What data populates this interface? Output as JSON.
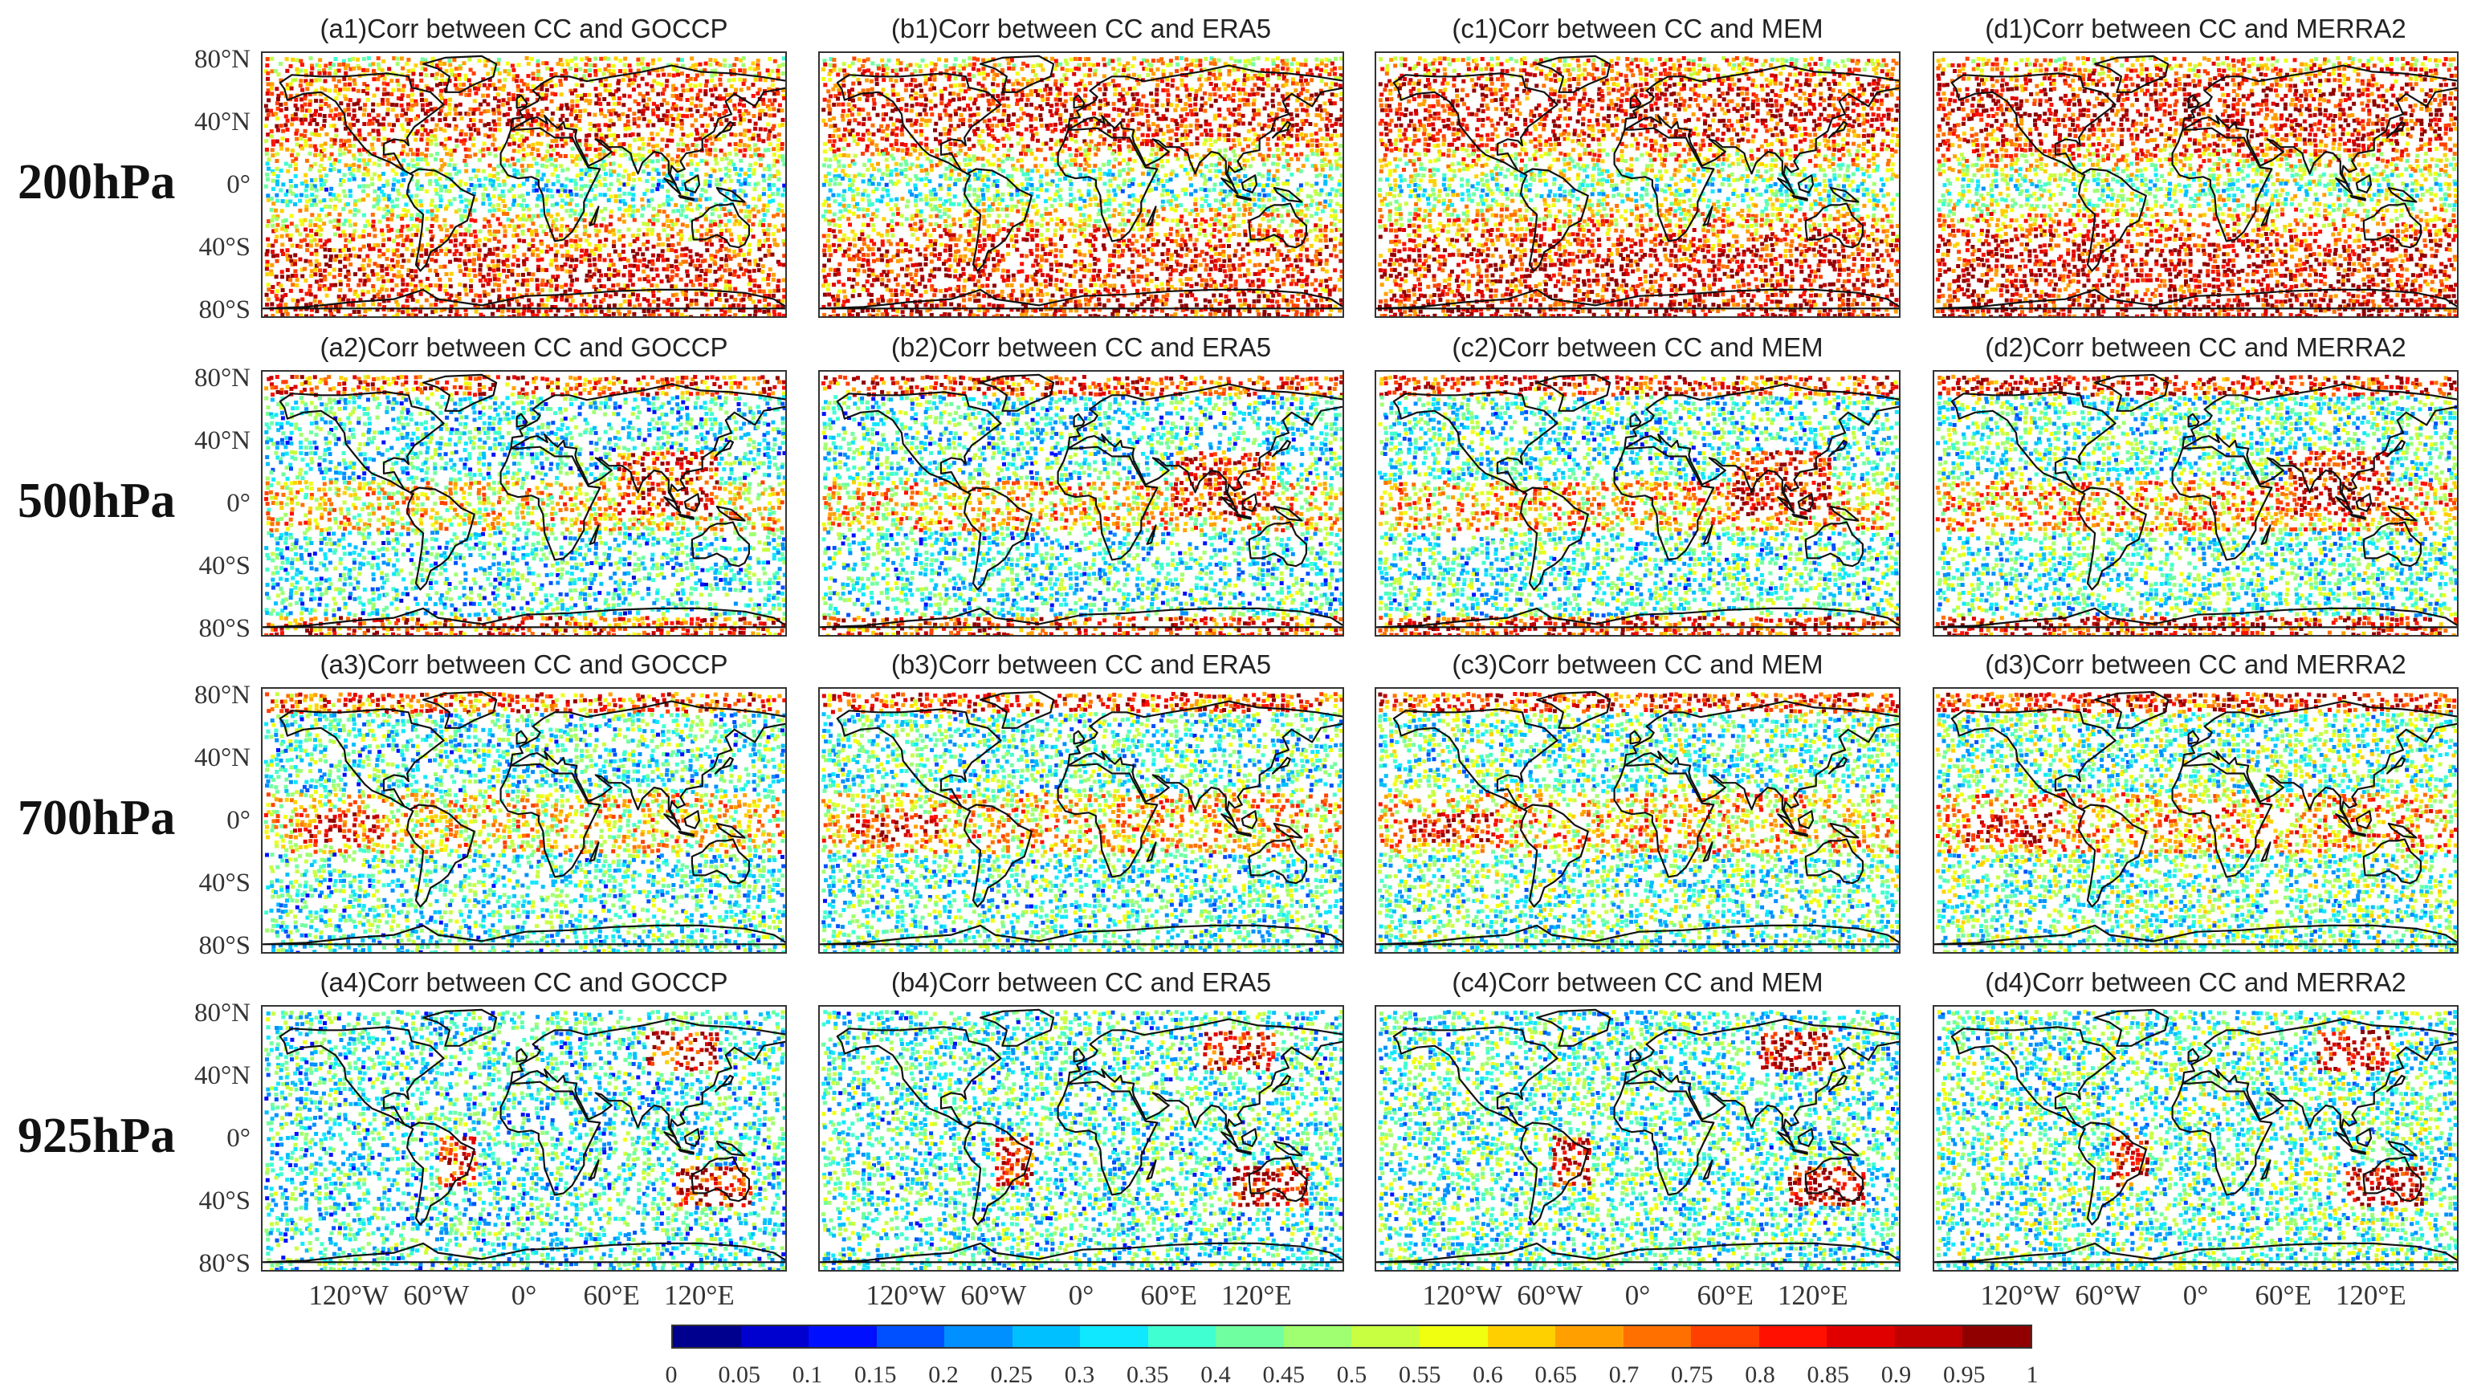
{
  "figure": {
    "rows": [
      {
        "level": "200hPa",
        "titles": [
          "(a1)Corr between CC and GOCCP",
          "(b1)Corr between CC and ERA5",
          "(c1)Corr between CC and MEM",
          "(d1)Corr between CC and MERRA2"
        ]
      },
      {
        "level": "500hPa",
        "titles": [
          "(a2)Corr between CC and GOCCP",
          "(b2)Corr between CC and ERA5",
          "(c2)Corr between CC and MEM",
          "(d2)Corr between CC and MERRA2"
        ]
      },
      {
        "level": "700hPa",
        "titles": [
          "(a3)Corr between CC and GOCCP",
          "(b3)Corr between CC and ERA5",
          "(c3)Corr between CC and MEM",
          "(d3)Corr between CC and MERRA2"
        ]
      },
      {
        "level": "925hPa",
        "titles": [
          "(a4)Corr between CC and GOCCP",
          "(b4)Corr between CC and ERA5",
          "(c4)Corr between CC and MEM",
          "(d4)Corr between CC and MERRA2"
        ]
      }
    ],
    "lat_ticks": [
      "80°N",
      "40°N",
      "0°",
      "40°S",
      "80°S"
    ],
    "lon_ticks": [
      "120°W",
      "60°W",
      "0°",
      "60°E",
      "120°E"
    ]
  },
  "colorbar": {
    "labels": [
      "0",
      "0.05",
      "0.1",
      "0.15",
      "0.2",
      "0.25",
      "0.3",
      "0.35",
      "0.4",
      "0.45",
      "0.5",
      "0.55",
      "0.6",
      "0.65",
      "0.7",
      "0.75",
      "0.8",
      "0.85",
      "0.9",
      "0.95",
      "1"
    ],
    "colors": [
      "#00008f",
      "#0000cf",
      "#0010ff",
      "#0050ff",
      "#0090ff",
      "#00c0ff",
      "#10e8ff",
      "#40ffd0",
      "#70ffa0",
      "#a0ff70",
      "#c8ff40",
      "#f0ff10",
      "#ffd000",
      "#ffa000",
      "#ff7000",
      "#ff4000",
      "#ff1000",
      "#e00000",
      "#c00000",
      "#900000"
    ]
  }
}
